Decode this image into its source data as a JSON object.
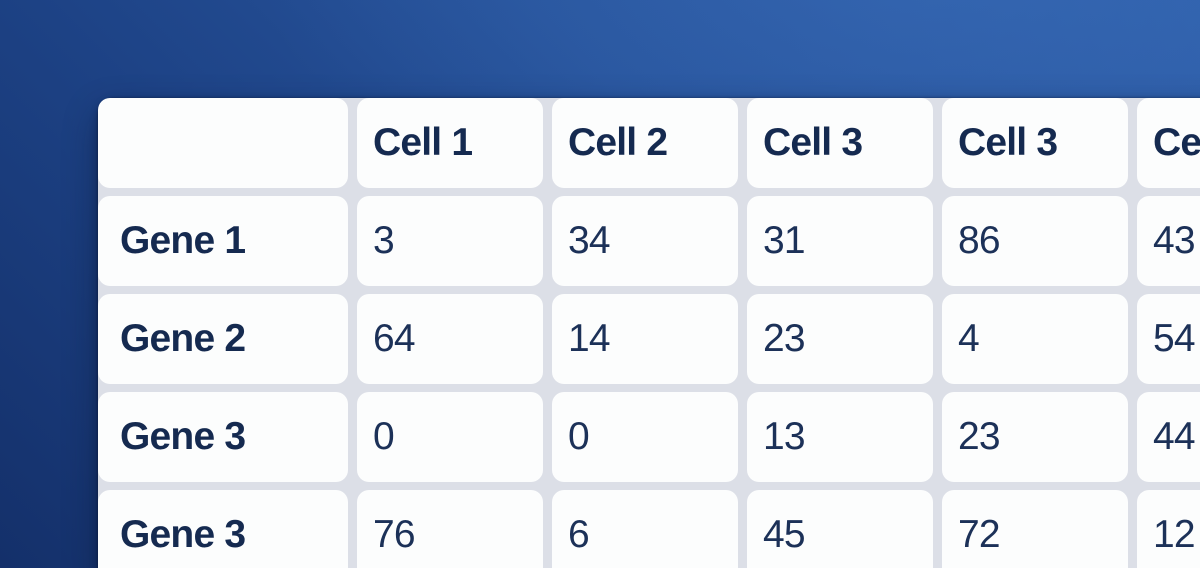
{
  "colors": {
    "background_top_right": "#2e5ea9",
    "background_bottom_left": "#14306a",
    "card_gap": "#dcdfe7",
    "cell_background": "#fcfdfd",
    "header_text": "#152a50",
    "value_text": "#1c3158"
  },
  "table": {
    "corner_label": "",
    "columns": [
      "Cell 1",
      "Cell 2",
      "Cell 3",
      "Cell 3",
      "Ce"
    ],
    "rows": [
      {
        "label": "Gene 1",
        "values": [
          3,
          34,
          31,
          86,
          43
        ]
      },
      {
        "label": "Gene 2",
        "values": [
          64,
          14,
          23,
          4,
          54
        ]
      },
      {
        "label": "Gene 3",
        "values": [
          0,
          0,
          13,
          23,
          44
        ]
      },
      {
        "label": "Gene 3",
        "values": [
          76,
          6,
          45,
          72,
          12
        ]
      }
    ]
  }
}
